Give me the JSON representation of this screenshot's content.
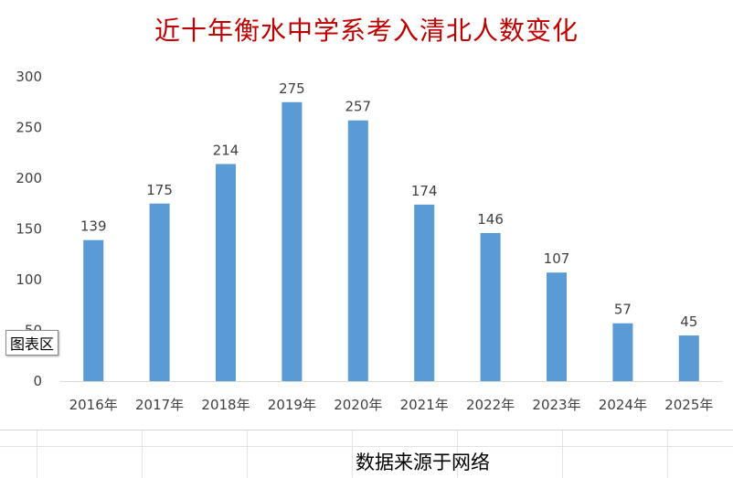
{
  "chart_data": {
    "type": "bar",
    "title": "近十年衡水中学系考入清北人数变化",
    "categories": [
      "2016年",
      "2017年",
      "2018年",
      "2019年",
      "2020年",
      "2021年",
      "2022年",
      "2023年",
      "2024年",
      "2025年"
    ],
    "values": [
      139,
      175,
      214,
      275,
      257,
      174,
      146,
      107,
      57,
      45
    ],
    "y_ticks": [
      "0",
      "50",
      "100",
      "150",
      "200",
      "250",
      "300"
    ],
    "ylim": [
      0,
      300
    ],
    "bar_color": "#5b9bd5",
    "grid": false,
    "legend": "none"
  },
  "tooltip": "图表区",
  "source_note": "数据来源于网络"
}
